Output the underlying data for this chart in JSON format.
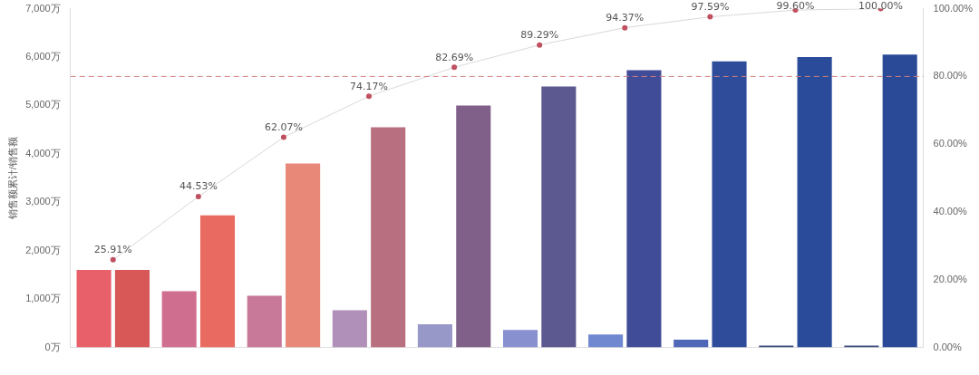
{
  "chart_data": {
    "type": "bar",
    "ylabel": "销售额累计/销售额",
    "categories": [
      null,
      null,
      null,
      null,
      null,
      null,
      null,
      null,
      null,
      null
    ],
    "series": [
      {
        "colors": [
          "#e8606a",
          "#d06e90",
          "#c87898",
          "#b090b8",
          "#9898c8",
          "#8890d0",
          "#7088d0",
          "#5068b8",
          "#404e80",
          "#404e80"
        ],
        "values": [
          1600,
          1160,
          1070,
          770,
          480,
          360,
          270,
          160,
          40,
          40
        ]
      },
      {
        "colors": [
          "#d85858",
          "#e86a60",
          "#e88878",
          "#b87080",
          "#806088",
          "#5c5890",
          "#404c98",
          "#2e4c9a",
          "#2a4a9a",
          "#2a4a98"
        ],
        "values": [
          1600,
          2730,
          3800,
          4550,
          5000,
          5390,
          5730,
          5910,
          6000,
          6050
        ]
      },
      {
        "type": "line",
        "axis": "y2",
        "color": "#d8d8d8",
        "marker": "circle",
        "values": [
          25.91,
          44.53,
          62.07,
          74.17,
          82.69,
          89.29,
          94.37,
          97.59,
          99.6,
          100
        ],
        "value_labels": [
          "25.91%",
          "44.53%",
          "62.07%",
          "74.17%",
          "82.69%",
          "89.29%",
          "94.37%",
          "97.59%",
          "99.60%",
          "100.00%"
        ]
      }
    ],
    "ylim": [
      0,
      7000
    ],
    "yticks": [
      {
        "value": 0,
        "label": "0万"
      },
      {
        "value": 1000,
        "label": "1,000万"
      },
      {
        "value": 2000,
        "label": "2,000万"
      },
      {
        "value": 3000,
        "label": "3,000万"
      },
      {
        "value": 4000,
        "label": "4,000万"
      },
      {
        "value": 5000,
        "label": "5,000万"
      },
      {
        "value": 6000,
        "label": "6,000万"
      },
      {
        "value": 7000,
        "label": "7,000万"
      }
    ],
    "y2lim": [
      0,
      100
    ],
    "y2ticks": [
      {
        "value": 0,
        "label": "0.00%"
      },
      {
        "value": 20,
        "label": "20.00%"
      },
      {
        "value": 40,
        "label": "40.00%"
      },
      {
        "value": 60,
        "label": "60.00%"
      },
      {
        "value": 80,
        "label": "80.00%"
      },
      {
        "value": 100,
        "label": "100.00%"
      }
    ],
    "ref_lines": [
      {
        "axis": "y2",
        "value": 80,
        "color": "#d08080",
        "line_style": "dashed"
      }
    ],
    "grid": false,
    "legend": false
  }
}
